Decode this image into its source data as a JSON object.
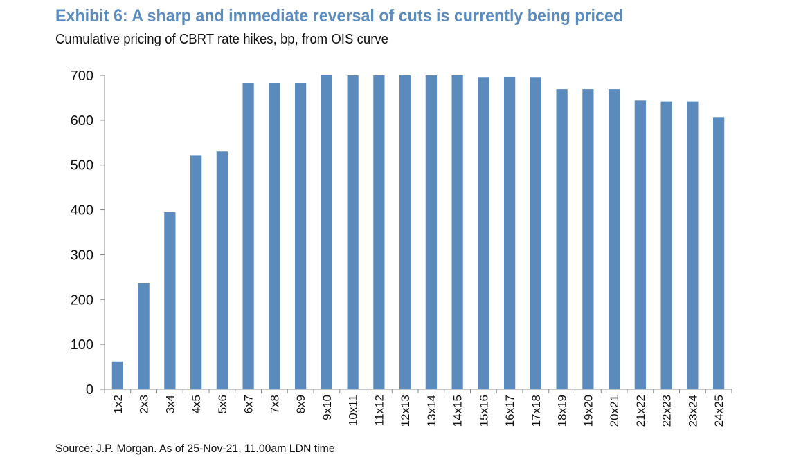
{
  "title": "Exhibit 6: A sharp and immediate reversal of cuts is currently being priced",
  "subtitle": "Cumulative pricing of CBRT rate hikes, bp, from OIS curve",
  "source": "Source: J.P. Morgan. As of 25-Nov-21, 11.00am LDN time",
  "colors": {
    "title": "#5b8bbd",
    "bar": "#5b8bbd"
  },
  "chart_data": {
    "type": "bar",
    "categories": [
      "1x2",
      "2x3",
      "3x4",
      "4x5",
      "5x6",
      "6x7",
      "7x8",
      "8x9",
      "9x10",
      "10x11",
      "11x12",
      "12x13",
      "13x14",
      "14x15",
      "15x16",
      "16x17",
      "17x18",
      "18x19",
      "19x20",
      "20x21",
      "21x22",
      "22x23",
      "23x24",
      "24x25"
    ],
    "values": [
      62,
      236,
      395,
      522,
      530,
      683,
      683,
      683,
      700,
      700,
      700,
      700,
      700,
      700,
      695,
      696,
      695,
      669,
      669,
      669,
      644,
      642,
      642,
      607
    ],
    "yticks": [
      0,
      100,
      200,
      300,
      400,
      500,
      600,
      700
    ],
    "ylim": [
      0,
      700
    ],
    "grid": false,
    "legend": "none",
    "xlabel": "",
    "ylabel": ""
  }
}
